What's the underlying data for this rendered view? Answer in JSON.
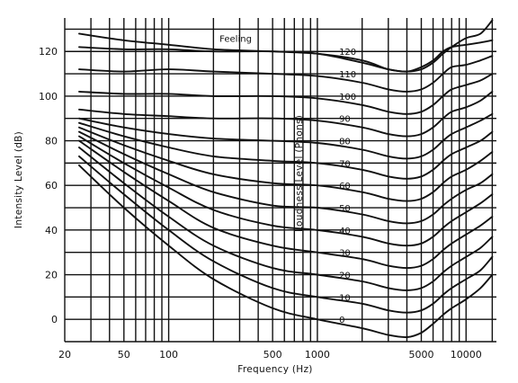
{
  "chart_data": {
    "type": "line",
    "xlabel": "Frequency (Hz)",
    "ylabel": "Intensity Level (dB)",
    "inner_label": "Loudness Level (Phons)",
    "x_scale": "log",
    "xlim": [
      20,
      16000
    ],
    "ylim": [
      -10,
      135
    ],
    "x_ticks": [
      20,
      50,
      100,
      500,
      1000,
      5000,
      10000
    ],
    "x_tick_labels": [
      "20",
      "50",
      "100",
      "500",
      "1000",
      "5000",
      "10000"
    ],
    "y_ticks": [
      0,
      20,
      40,
      60,
      80,
      100,
      120
    ],
    "y_tick_labels": [
      "0",
      "20",
      "40",
      "60",
      "80",
      "100",
      "120"
    ],
    "grid": true,
    "x_grid": [
      20,
      30,
      40,
      50,
      60,
      70,
      80,
      90,
      100,
      200,
      300,
      400,
      500,
      600,
      700,
      800,
      900,
      1000,
      2000,
      3000,
      4000,
      5000,
      6000,
      7000,
      8000,
      9000,
      10000,
      15000
    ],
    "y_grid": [
      -10,
      0,
      10,
      20,
      30,
      40,
      50,
      60,
      70,
      80,
      90,
      100,
      110,
      120,
      130
    ],
    "series": [
      {
        "name": "Feeling",
        "x": [
          25,
          50,
          100,
          200,
          500,
          1000,
          2000,
          3000,
          4000,
          5000,
          6000,
          7000,
          8000,
          10000,
          12500,
          15000
        ],
        "y": [
          128,
          125,
          123,
          121,
          120,
          119,
          116,
          112,
          111,
          112,
          115,
          119,
          122,
          126,
          128,
          134
        ]
      },
      {
        "name": "120",
        "x": [
          25,
          50,
          100,
          200,
          500,
          1000,
          2000,
          3000,
          4000,
          5000,
          6000,
          7000,
          8000,
          10000,
          12500,
          15000
        ],
        "y": [
          122,
          121,
          121,
          120,
          120,
          119,
          115,
          112,
          111,
          113,
          116,
          120,
          122,
          123,
          124,
          125
        ]
      },
      {
        "name": "110",
        "x": [
          25,
          50,
          100,
          200,
          500,
          1000,
          2000,
          3000,
          4000,
          5000,
          6000,
          7000,
          8000,
          10000,
          12500,
          15000
        ],
        "y": [
          112,
          111,
          112,
          111,
          110,
          109,
          106,
          103,
          102,
          103,
          106,
          110,
          113,
          114,
          116,
          118
        ]
      },
      {
        "name": "100",
        "x": [
          25,
          50,
          100,
          200,
          500,
          1000,
          2000,
          3000,
          4000,
          5000,
          6000,
          7000,
          8000,
          10000,
          12500,
          15000
        ],
        "y": [
          102,
          101,
          101,
          100,
          100,
          99,
          96,
          93,
          92,
          93,
          96,
          100,
          103,
          105,
          107,
          110
        ]
      },
      {
        "name": "90",
        "x": [
          25,
          50,
          100,
          200,
          500,
          1000,
          2000,
          3000,
          4000,
          5000,
          6000,
          7000,
          8000,
          10000,
          12500,
          15000
        ],
        "y": [
          94,
          92,
          91,
          90,
          90,
          89,
          86,
          83,
          82,
          83,
          86,
          90,
          93,
          95,
          98,
          102
        ]
      },
      {
        "name": "80",
        "x": [
          25,
          50,
          100,
          200,
          500,
          1000,
          2000,
          3000,
          4000,
          5000,
          6000,
          7000,
          8000,
          10000,
          12500,
          15000
        ],
        "y": [
          90,
          86,
          83,
          81,
          80,
          79,
          76,
          73,
          72,
          73,
          76,
          80,
          83,
          86,
          89,
          92
        ]
      },
      {
        "name": "70",
        "x": [
          25,
          50,
          100,
          200,
          500,
          1000,
          2000,
          3000,
          4000,
          5000,
          6000,
          7000,
          8000,
          10000,
          12500,
          15000
        ],
        "y": [
          88,
          82,
          77,
          73,
          71,
          70,
          67,
          64,
          63,
          64,
          67,
          71,
          74,
          77,
          80,
          84
        ]
      },
      {
        "name": "60",
        "x": [
          25,
          50,
          100,
          200,
          500,
          1000,
          2000,
          3000,
          4000,
          5000,
          6000,
          7000,
          8000,
          10000,
          12500,
          15000
        ],
        "y": [
          86,
          78,
          71,
          65,
          61,
          60,
          57,
          54,
          53,
          54,
          57,
          61,
          64,
          67,
          71,
          75
        ]
      },
      {
        "name": "50",
        "x": [
          25,
          50,
          100,
          200,
          500,
          1000,
          2000,
          3000,
          4000,
          5000,
          6000,
          7000,
          8000,
          10000,
          12500,
          15000
        ],
        "y": [
          84,
          74,
          65,
          57,
          51,
          50,
          47,
          44,
          43,
          44,
          47,
          51,
          54,
          58,
          61,
          65
        ]
      },
      {
        "name": "40",
        "x": [
          25,
          50,
          100,
          200,
          500,
          1000,
          2000,
          3000,
          4000,
          5000,
          6000,
          7000,
          8000,
          10000,
          12500,
          15000
        ],
        "y": [
          82,
          70,
          59,
          49,
          42,
          40,
          37,
          34,
          33,
          34,
          37,
          41,
          44,
          48,
          52,
          56
        ]
      },
      {
        "name": "30",
        "x": [
          25,
          50,
          100,
          200,
          500,
          1000,
          2000,
          3000,
          4000,
          5000,
          6000,
          7000,
          8000,
          10000,
          12500,
          15000
        ],
        "y": [
          80,
          66,
          53,
          41,
          33,
          30,
          27,
          24,
          23,
          24,
          27,
          31,
          34,
          38,
          42,
          46
        ]
      },
      {
        "name": "20",
        "x": [
          25,
          50,
          100,
          200,
          500,
          1000,
          2000,
          3000,
          4000,
          5000,
          6000,
          7000,
          8000,
          10000,
          12500,
          15000
        ],
        "y": [
          77,
          61,
          46,
          33,
          23,
          20,
          17,
          14,
          13,
          14,
          17,
          21,
          24,
          28,
          32,
          37
        ]
      },
      {
        "name": "10",
        "x": [
          25,
          50,
          100,
          200,
          500,
          1000,
          2000,
          3000,
          4000,
          5000,
          6000,
          7000,
          8000,
          10000,
          12500,
          15000
        ],
        "y": [
          73,
          56,
          40,
          26,
          14,
          10,
          7,
          4,
          3,
          4,
          7,
          11,
          14,
          18,
          22,
          28
        ]
      },
      {
        "name": "0",
        "x": [
          25,
          50,
          100,
          200,
          500,
          1000,
          2000,
          3000,
          4000,
          5000,
          6000,
          7000,
          8000,
          10000,
          12500,
          15000
        ],
        "y": [
          69,
          50,
          33,
          18,
          5,
          0,
          -4,
          -7,
          -8,
          -6,
          -2,
          2,
          5,
          9,
          14,
          20
        ]
      }
    ]
  }
}
